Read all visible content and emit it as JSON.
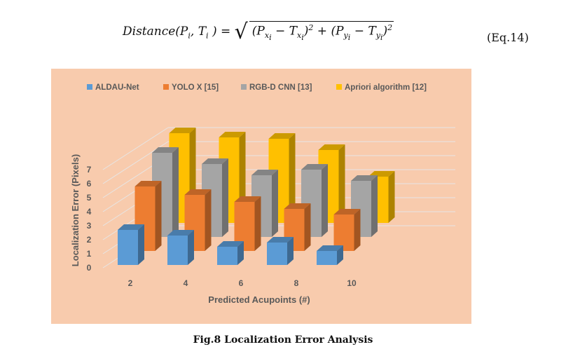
{
  "equation": {
    "lhs": "Distance(P",
    "lhs_sub1": "i",
    "lhs_mid": ", T",
    "lhs_sub2": "i",
    "lhs_end": " ) =",
    "term1": "(P",
    "term1_sub": "x",
    "term1_subsub": "i",
    "term1_minus": " − T",
    "term1_sub2": "x",
    "term1_subsub2": "i",
    "term1_close": ")",
    "exp": "2",
    "plus": " + ",
    "term2": "(P",
    "term2_sub": "y",
    "term2_subsub": "i",
    "term2_minus": " − T",
    "term2_sub2": "y",
    "term2_subsub2": "i",
    "term2_close": ")",
    "number": "(Eq.14)"
  },
  "caption": "Fig.8 Localization Error Analysis",
  "chart_data": {
    "type": "bar",
    "style": "3d-clustered-depth",
    "title": "",
    "xlabel": "Predicted Acupoints (#)",
    "ylabel": "Localization Error (Pixels)",
    "categories": [
      "2",
      "4",
      "6",
      "8",
      "10"
    ],
    "yticks": [
      "0",
      "1",
      "2",
      "3",
      "4",
      "5",
      "6",
      "7"
    ],
    "ylim": [
      0,
      7
    ],
    "legend_position": "top",
    "grid": true,
    "background": "#F8CBAD",
    "series": [
      {
        "name": "ALDAU-Net",
        "color": "#5B9BD5",
        "values": [
          2.5,
          2.1,
          1.3,
          1.6,
          1.0
        ]
      },
      {
        "name": "YOLO X [15]",
        "color": "#ED7D31",
        "values": [
          4.6,
          4.0,
          3.5,
          3.0,
          2.6
        ]
      },
      {
        "name": "RGB-D CNN [13]",
        "color": "#A5A5A5",
        "values": [
          6.0,
          5.2,
          4.4,
          4.8,
          4.0
        ]
      },
      {
        "name": "Apriori algorithm [12]",
        "color": "#FFC000",
        "values": [
          6.4,
          6.1,
          6.0,
          5.2,
          3.3
        ]
      }
    ]
  }
}
